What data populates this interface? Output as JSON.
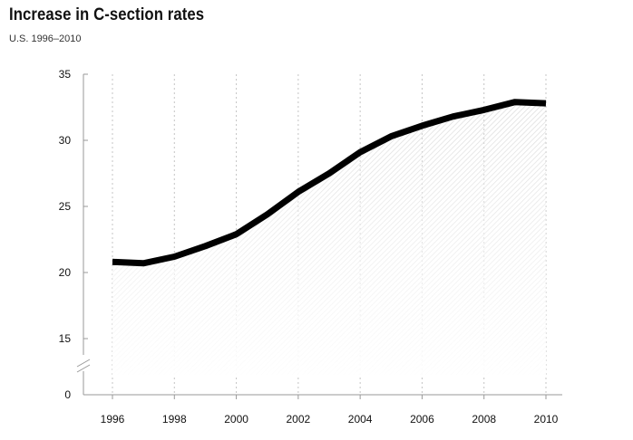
{
  "chart_data": {
    "type": "area",
    "title": "Increase in C-section rates",
    "subtitle": "U.S. 1996–2010",
    "xlabel": "",
    "ylabel": "",
    "x": [
      1996,
      1997,
      1998,
      1999,
      2000,
      2001,
      2002,
      2003,
      2004,
      2005,
      2006,
      2007,
      2008,
      2009,
      2010
    ],
    "series": [
      {
        "values": [
          20.8,
          20.7,
          21.2,
          22.0,
          22.9,
          24.4,
          26.1,
          27.5,
          29.1,
          30.3,
          31.1,
          31.8,
          32.3,
          32.9,
          32.8
        ]
      }
    ],
    "x_ticks": [
      "1996",
      "1998",
      "2000",
      "2002",
      "2004",
      "2006",
      "2008",
      "2010"
    ],
    "y_ticks": [
      "35",
      "30",
      "25",
      "20",
      "15",
      "0"
    ],
    "ylim": [
      0,
      35
    ],
    "y_axis_break": [
      0,
      15
    ],
    "grid": "vertical dotted",
    "line_color": "#000000"
  }
}
